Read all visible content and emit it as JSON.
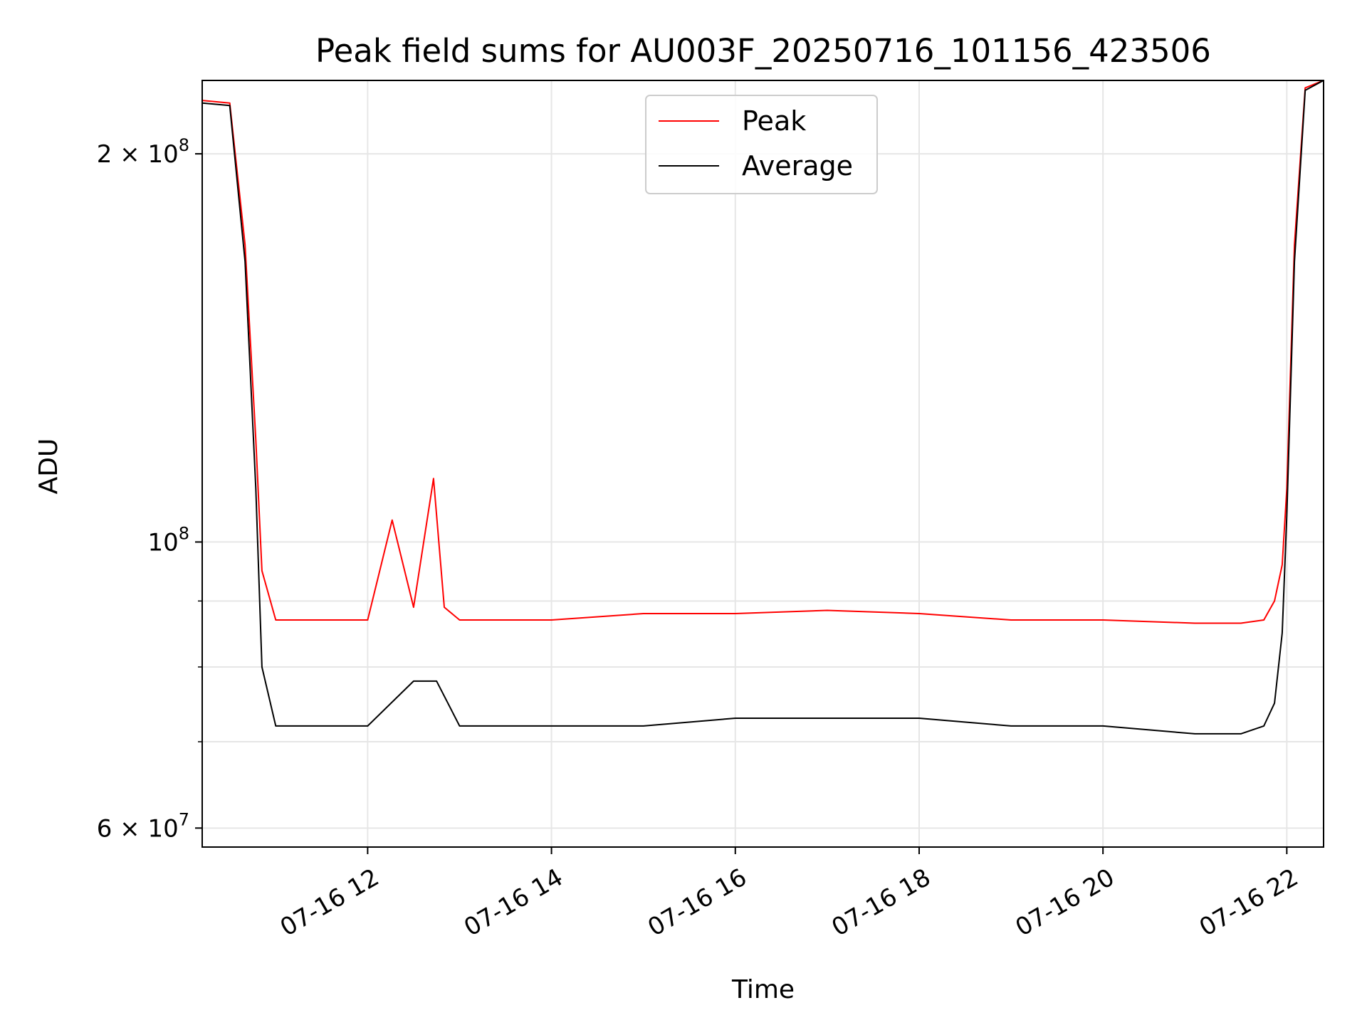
{
  "chart_data": {
    "type": "line",
    "title": "Peak field sums for AU003F_20250716_101156_423506",
    "xlabel": "Time",
    "ylabel": "ADU",
    "y_scale": "log",
    "ylim": [
      58000000,
      228000000
    ],
    "xlim": [
      "2025-07-16 10:12",
      "2025-07-16 22:24"
    ],
    "grid": true,
    "legend_position": "top-center",
    "x_ticks": [
      {
        "value": "2025-07-16 12:00",
        "label": "07-16 12"
      },
      {
        "value": "2025-07-16 14:00",
        "label": "07-16 14"
      },
      {
        "value": "2025-07-16 16:00",
        "label": "07-16 16"
      },
      {
        "value": "2025-07-16 18:00",
        "label": "07-16 18"
      },
      {
        "value": "2025-07-16 20:00",
        "label": "07-16 20"
      },
      {
        "value": "2025-07-16 22:00",
        "label": "07-16 22"
      }
    ],
    "y_ticks": [
      {
        "value": 60000000,
        "label": "6 × 10⁷",
        "mantissa": "6 × 10",
        "exp": "7"
      },
      {
        "value": 100000000,
        "label": "10⁸",
        "mantissa": "10",
        "exp": "8"
      },
      {
        "value": 200000000,
        "label": "2 × 10⁸",
        "mantissa": "2 × 10",
        "exp": "8"
      }
    ],
    "y_minor_ticks": [
      70000000,
      80000000,
      90000000
    ],
    "series": [
      {
        "name": "Peak",
        "color": "#ff0000",
        "x": [
          "2025-07-16 10:12",
          "2025-07-16 10:30",
          "2025-07-16 10:40",
          "2025-07-16 10:47",
          "2025-07-16 10:51",
          "2025-07-16 11:00",
          "2025-07-16 11:30",
          "2025-07-16 12:00",
          "2025-07-16 12:16",
          "2025-07-16 12:30",
          "2025-07-16 12:43",
          "2025-07-16 12:50",
          "2025-07-16 13:00",
          "2025-07-16 14:00",
          "2025-07-16 15:00",
          "2025-07-16 16:00",
          "2025-07-16 17:00",
          "2025-07-16 18:00",
          "2025-07-16 19:00",
          "2025-07-16 20:00",
          "2025-07-16 21:00",
          "2025-07-16 21:30",
          "2025-07-16 21:45",
          "2025-07-16 21:52",
          "2025-07-16 21:57",
          "2025-07-16 22:00",
          "2025-07-16 22:05",
          "2025-07-16 22:12",
          "2025-07-16 22:24"
        ],
        "y": [
          220000000,
          219000000,
          170000000,
          120000000,
          95000000,
          87000000,
          87000000,
          87000000,
          104000000,
          89000000,
          112000000,
          89000000,
          87000000,
          87000000,
          88000000,
          88000000,
          88500000,
          88000000,
          87000000,
          87000000,
          86500000,
          86500000,
          87000000,
          90000000,
          96000000,
          110000000,
          170000000,
          225000000,
          228000000
        ]
      },
      {
        "name": "Average",
        "color": "#000000",
        "x": [
          "2025-07-16 10:12",
          "2025-07-16 10:30",
          "2025-07-16 10:40",
          "2025-07-16 10:47",
          "2025-07-16 10:51",
          "2025-07-16 11:00",
          "2025-07-16 11:30",
          "2025-07-16 12:00",
          "2025-07-16 12:30",
          "2025-07-16 12:45",
          "2025-07-16 13:00",
          "2025-07-16 14:00",
          "2025-07-16 15:00",
          "2025-07-16 16:00",
          "2025-07-16 17:00",
          "2025-07-16 18:00",
          "2025-07-16 19:00",
          "2025-07-16 20:00",
          "2025-07-16 21:00",
          "2025-07-16 21:30",
          "2025-07-16 21:45",
          "2025-07-16 21:52",
          "2025-07-16 21:57",
          "2025-07-16 22:00",
          "2025-07-16 22:05",
          "2025-07-16 22:12",
          "2025-07-16 22:24"
        ],
        "y": [
          219000000,
          218000000,
          165000000,
          110000000,
          80000000,
          72000000,
          72000000,
          72000000,
          78000000,
          78000000,
          72000000,
          72000000,
          72000000,
          73000000,
          73000000,
          73000000,
          72000000,
          72000000,
          71000000,
          71000000,
          72000000,
          75000000,
          85000000,
          105000000,
          165000000,
          224000000,
          228000000
        ]
      }
    ]
  }
}
